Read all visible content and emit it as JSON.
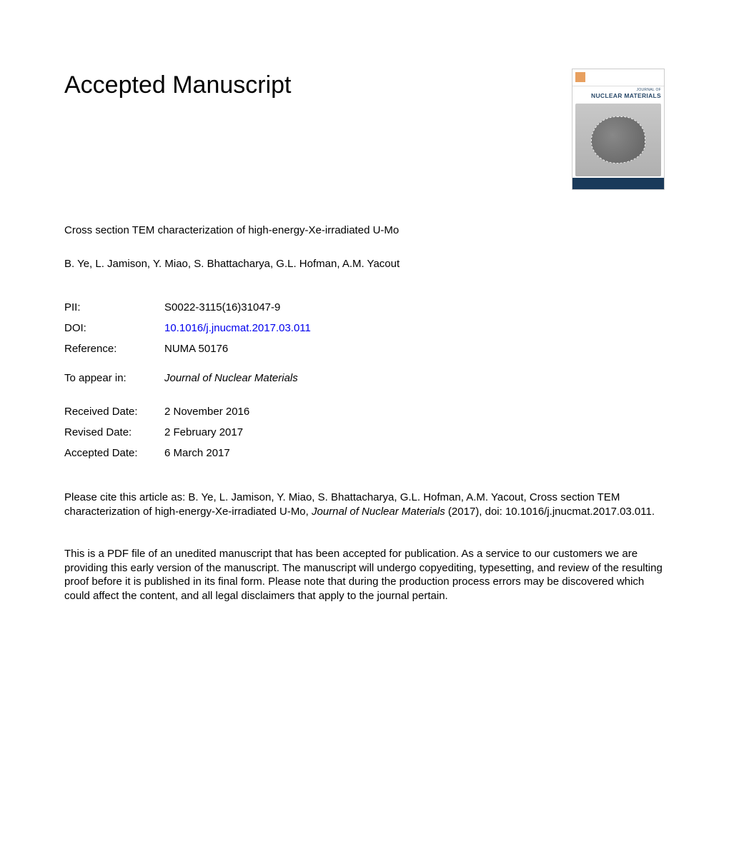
{
  "heading": "Accepted Manuscript",
  "cover": {
    "journal_of": "JOURNAL OF",
    "title": "NUCLEAR MATERIALS"
  },
  "article_title": "Cross section TEM characterization of high-energy-Xe-irradiated U-Mo",
  "authors": "B. Ye, L. Jamison, Y. Miao, S. Bhattacharya, G.L. Hofman, A.M. Yacout",
  "meta": {
    "pii_label": "PII:",
    "pii_value": "S0022-3115(16)31047-9",
    "doi_label": "DOI:",
    "doi_value": "10.1016/j.jnucmat.2017.03.011",
    "ref_label": "Reference:",
    "ref_value": "NUMA 50176"
  },
  "appear": {
    "label": "To appear in:",
    "value": "Journal of Nuclear Materials"
  },
  "dates": {
    "received_label": "Received Date:",
    "received_value": "2 November 2016",
    "revised_label": "Revised Date:",
    "revised_value": "2 February 2017",
    "accepted_label": "Accepted Date:",
    "accepted_value": "6 March 2017"
  },
  "citation": {
    "prefix": "Please cite this article as: B. Ye, L. Jamison, Y. Miao, S. Bhattacharya, G.L. Hofman, A.M. Yacout, Cross section TEM characterization of high-energy-Xe-irradiated U-Mo, ",
    "journal": "Journal of Nuclear Materials",
    "suffix": " (2017), doi: 10.1016/j.jnucmat.2017.03.011."
  },
  "disclaimer": "This is a PDF file of an unedited manuscript that has been accepted for publication. As a service to our customers we are providing this early version of the manuscript. The manuscript will undergo copyediting, typesetting, and review of the resulting proof before it is published in its final form. Please note that during the production process errors may be discovered which could affect the content, and all legal disclaimers that apply to the journal pertain.",
  "colors": {
    "text": "#000000",
    "link": "#0000ee",
    "background": "#ffffff",
    "cover_bar": "#1a3a5a",
    "cover_title": "#2a4a6a"
  },
  "typography": {
    "heading_fontsize": 34,
    "body_fontsize": 15,
    "font_family": "Arial"
  }
}
